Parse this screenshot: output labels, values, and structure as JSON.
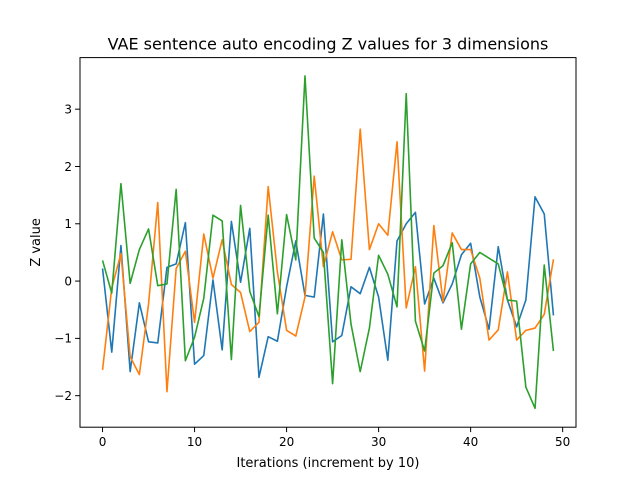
{
  "chart_data": {
    "type": "line",
    "title": "VAE sentence auto encoding Z values for 3 dimensions",
    "xlabel": "Iterations (increment by 10)",
    "ylabel": "Z value",
    "xlim": [
      -2.45,
      51.45
    ],
    "ylim": [
      -2.55,
      3.9
    ],
    "xticks": [
      0,
      10,
      20,
      30,
      40,
      50
    ],
    "yticks": [
      -2,
      -1,
      0,
      1,
      2,
      3
    ],
    "grid": false,
    "legend": "none",
    "x": [
      0,
      1,
      2,
      3,
      4,
      5,
      6,
      7,
      8,
      9,
      10,
      11,
      12,
      13,
      14,
      15,
      16,
      17,
      18,
      19,
      20,
      21,
      22,
      23,
      24,
      25,
      26,
      27,
      28,
      29,
      30,
      31,
      32,
      33,
      34,
      35,
      36,
      37,
      38,
      39,
      40,
      41,
      42,
      43,
      44,
      45,
      46,
      47,
      48,
      49
    ],
    "series": [
      {
        "color": "#1f77b4",
        "values": [
          0.22,
          -1.24,
          0.62,
          -1.58,
          -0.38,
          -1.06,
          -1.08,
          0.24,
          0.3,
          1.02,
          -1.45,
          -1.3,
          0.02,
          -1.2,
          1.04,
          -0.02,
          0.92,
          -1.68,
          -0.97,
          -1.05,
          -0.1,
          0.7,
          -0.25,
          -0.28,
          1.17,
          -1.06,
          -0.95,
          -0.1,
          -0.22,
          0.24,
          -0.28,
          -1.38,
          0.7,
          1.0,
          1.2,
          -0.4,
          0.05,
          -0.38,
          -0.05,
          0.46,
          0.66,
          -0.28,
          -0.84,
          0.6,
          -0.33,
          -0.8,
          -0.33,
          1.47,
          1.17,
          -0.6
        ]
      },
      {
        "color": "#ff7f0e",
        "values": [
          -1.55,
          -0.12,
          0.48,
          -1.32,
          -1.63,
          -0.4,
          1.37,
          -1.93,
          0.22,
          0.52,
          -0.72,
          0.82,
          0.05,
          0.72,
          -0.06,
          -0.2,
          -0.88,
          -0.72,
          1.65,
          0.16,
          -0.86,
          -0.96,
          -0.28,
          1.83,
          0.25,
          0.86,
          0.37,
          0.38,
          2.65,
          0.55,
          1.0,
          0.8,
          2.43,
          -0.47,
          0.25,
          -1.57,
          0.97,
          -0.36,
          0.84,
          0.55,
          0.55,
          0.05,
          -1.03,
          -0.85,
          0.16,
          -1.03,
          -0.86,
          -0.82,
          -0.58,
          0.38
        ]
      },
      {
        "color": "#2ca02c",
        "values": [
          0.36,
          -0.21,
          1.7,
          -0.04,
          0.55,
          0.91,
          -0.08,
          -0.05,
          1.6,
          -1.39,
          -0.98,
          -0.3,
          1.15,
          1.05,
          -1.37,
          1.32,
          -0.18,
          -0.62,
          1.15,
          -0.57,
          1.16,
          0.37,
          3.58,
          0.75,
          0.5,
          -1.79,
          0.72,
          -0.75,
          -1.58,
          -0.82,
          0.45,
          0.12,
          -0.45,
          3.27,
          -0.7,
          -1.22,
          0.14,
          0.27,
          0.67,
          -0.84,
          0.3,
          0.5,
          0.4,
          0.3,
          -0.33,
          -0.35,
          -1.85,
          -2.22,
          0.28,
          -1.22
        ]
      }
    ]
  }
}
